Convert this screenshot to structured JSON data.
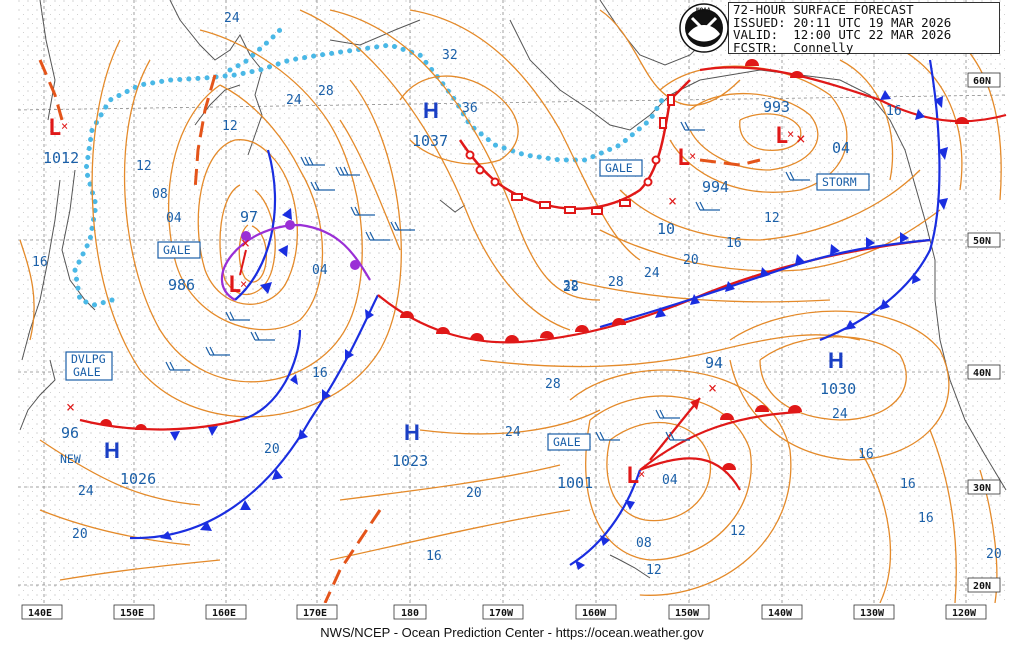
{
  "header": {
    "line1": "72-HOUR SURFACE FORECAST",
    "line2": "ISSUED: 20:11 UTC 19 MAR 2026",
    "line3": "VALID:  12:00 UTC 22 MAR 2026",
    "line4": "FCSTR:  Connelly",
    "logo": "NOAA"
  },
  "footer": "NWS/NCEP - Ocean Prediction Center - https://ocean.weather.gov",
  "longitude_labels": [
    "140E",
    "150E",
    "160E",
    "170E",
    "180",
    "170W",
    "160W",
    "150W",
    "140W",
    "130W",
    "120W"
  ],
  "latitude_labels": [
    "60N",
    "50N",
    "40N",
    "30N",
    "20N"
  ],
  "highs": [
    {
      "label": "H",
      "value": "1037"
    },
    {
      "label": "H",
      "value": "1026"
    },
    {
      "label": "H",
      "value": "1023"
    },
    {
      "label": "H",
      "value": "1030"
    }
  ],
  "lows": [
    {
      "label": "L",
      "value": "1012"
    },
    {
      "label": "L",
      "value": "986"
    },
    {
      "label": "L",
      "value": "994"
    },
    {
      "label": "L",
      "value": "1001"
    },
    {
      "label": "L",
      "value": "993"
    }
  ],
  "forecast_positions": [
    "97",
    "96",
    "94",
    "10",
    "04"
  ],
  "warning_tags": [
    "GALE",
    "GALE",
    "GALE",
    "STORM",
    "DVLPG\nGALE"
  ],
  "new_tag": "NEW",
  "isobar_labels": [
    "24",
    "28",
    "32",
    "36",
    "24",
    "12",
    "08",
    "04",
    "04",
    "16",
    "20",
    "24",
    "28",
    "32",
    "16",
    "20",
    "24",
    "20",
    "16",
    "12",
    "08",
    "04",
    "12",
    "16",
    "20",
    "24",
    "28",
    "28",
    "24",
    "16",
    "12",
    "12",
    "16",
    "16",
    "16",
    "20"
  ],
  "colors": {
    "isobar": "#e48a2a",
    "warm_front": "#e01818",
    "cold_front": "#1a2ee0",
    "occluded_front": "#9a2fd6",
    "ice_edge": "#4ab8e6",
    "label": "#1a5fa8",
    "coast": "#555555"
  }
}
